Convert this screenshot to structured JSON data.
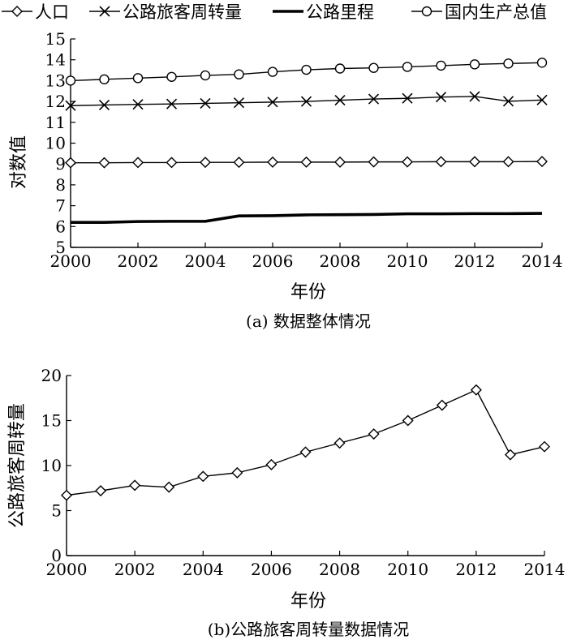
{
  "chart_data": [
    {
      "type": "line",
      "caption": "(a) 数据整体情况",
      "xlabel": "年份",
      "ylabel": "对数值",
      "xlim": [
        2000,
        2014
      ],
      "ylim": [
        5,
        15
      ],
      "x_ticks": [
        "2000",
        "2002",
        "2004",
        "2006",
        "2008",
        "2010",
        "2012",
        "2014"
      ],
      "y_ticks": [
        "5",
        "6",
        "7",
        "8",
        "9",
        "10",
        "11",
        "12",
        "13",
        "14",
        "15"
      ],
      "legend_position": "top",
      "x": [
        2000,
        2001,
        2002,
        2003,
        2004,
        2005,
        2006,
        2007,
        2008,
        2009,
        2010,
        2011,
        2012,
        2013,
        2014
      ],
      "series": [
        {
          "name": "人口",
          "marker": "diamond",
          "values": [
            9.06,
            9.06,
            9.07,
            9.07,
            9.08,
            9.08,
            9.09,
            9.09,
            9.09,
            9.1,
            9.1,
            9.11,
            9.11,
            9.11,
            9.12
          ]
        },
        {
          "name": "公路旅客周转量",
          "marker": "x",
          "values": [
            11.8,
            11.83,
            11.86,
            11.88,
            11.91,
            11.94,
            11.97,
            12.0,
            12.06,
            12.12,
            12.15,
            12.21,
            12.24,
            12.01,
            12.07
          ]
        },
        {
          "name": "公路里程",
          "marker": "none",
          "values": [
            6.2,
            6.2,
            6.24,
            6.25,
            6.25,
            6.51,
            6.52,
            6.56,
            6.57,
            6.58,
            6.61,
            6.61,
            6.62,
            6.62,
            6.63
          ]
        },
        {
          "name": "国内生产总值",
          "marker": "circle",
          "values": [
            13.0,
            13.06,
            13.12,
            13.18,
            13.25,
            13.3,
            13.42,
            13.52,
            13.58,
            13.61,
            13.66,
            13.72,
            13.78,
            13.82,
            13.86
          ]
        }
      ]
    },
    {
      "type": "line",
      "caption": "(b)公路旅客周转量数据情况",
      "xlabel": "年份",
      "ylabel": "公路旅客周转量",
      "xlim": [
        2000,
        2014
      ],
      "ylim": [
        0,
        20
      ],
      "x_ticks": [
        "2000",
        "2002",
        "2004",
        "2006",
        "2008",
        "2010",
        "2012",
        "2014"
      ],
      "y_ticks": [
        "0",
        "5",
        "10",
        "15",
        "20"
      ],
      "x": [
        2000,
        2001,
        2002,
        2003,
        2004,
        2005,
        2006,
        2007,
        2008,
        2009,
        2010,
        2011,
        2012,
        2013,
        2014
      ],
      "series": [
        {
          "marker": "diamond",
          "values": [
            6.7,
            7.2,
            7.8,
            7.6,
            8.8,
            9.2,
            10.1,
            11.5,
            12.5,
            13.5,
            15.0,
            16.7,
            18.4,
            11.2,
            12.1
          ]
        }
      ]
    }
  ]
}
